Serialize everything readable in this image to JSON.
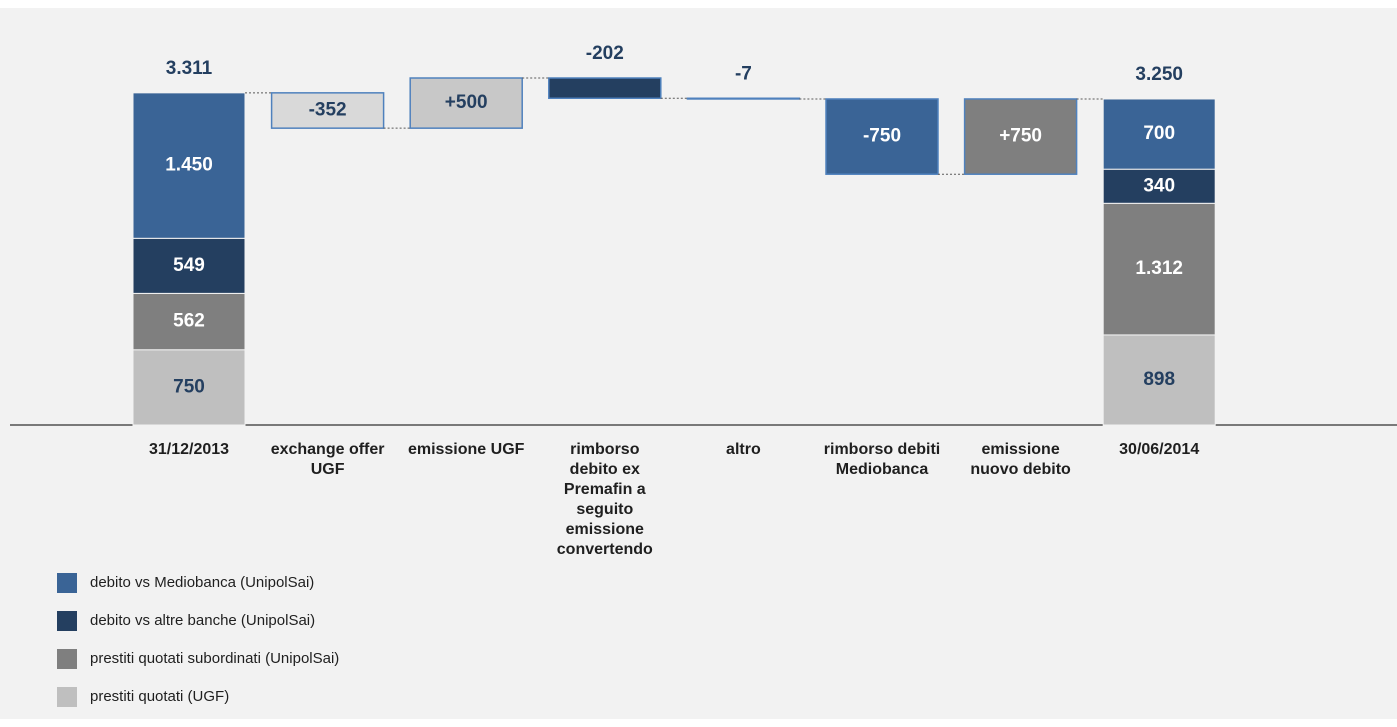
{
  "chart_data": {
    "type": "waterfall",
    "categories": [
      "31/12/2013",
      "exchange offer UGF",
      "emissione UGF",
      "rimborso debito ex Premafin a seguito emissione convertendo",
      "altro",
      "rimborso debiti Mediobanca",
      "emissione nuovo debito",
      "30/06/2014"
    ],
    "series": [
      {
        "name": "debito vs Mediobanca (UnipolSai)",
        "color": "#3a6496",
        "values": [
          1450,
          null,
          null,
          null,
          null,
          null,
          null,
          700
        ],
        "value_labels": [
          "1.450",
          null,
          null,
          null,
          null,
          null,
          null,
          null
        ]
      },
      {
        "name": "debito vs altre banche (UnipolSai)",
        "color": "#243f60",
        "values": [
          549,
          null,
          null,
          null,
          null,
          null,
          null,
          340
        ],
        "value_labels": [
          null,
          null,
          null,
          null,
          null,
          null,
          null,
          null
        ]
      },
      {
        "name": "prestiti quotati subordinati (UnipolSai)",
        "color": "#7f7f7f",
        "values": [
          562,
          null,
          null,
          null,
          null,
          null,
          null,
          1312
        ],
        "value_labels": [
          null,
          null,
          null,
          null,
          null,
          null,
          null,
          "1.312"
        ]
      },
      {
        "name": "prestiti quotati (UGF)",
        "color": "#bfbfbf",
        "values": [
          750,
          null,
          null,
          null,
          null,
          null,
          null,
          898
        ],
        "value_labels": [
          null,
          null,
          null,
          null,
          null,
          null,
          null,
          null
        ]
      }
    ],
    "totals": {
      "values": [
        3311,
        null,
        null,
        null,
        null,
        null,
        null,
        3250
      ],
      "value_labels": [
        "3.311",
        null,
        null,
        null,
        null,
        null,
        null,
        "3.250"
      ]
    },
    "deltas": {
      "values": [
        null,
        -352,
        500,
        -202,
        -7,
        -750,
        750,
        null
      ],
      "value_labels": [
        null,
        null,
        "+500",
        null,
        null,
        null,
        "+750",
        null
      ],
      "colors": [
        null,
        "#d9d9d9",
        "#c8c8c8",
        "#243f60",
        "#3a6496",
        "#3a6496",
        "#7f7f7f",
        null
      ]
    }
  }
}
